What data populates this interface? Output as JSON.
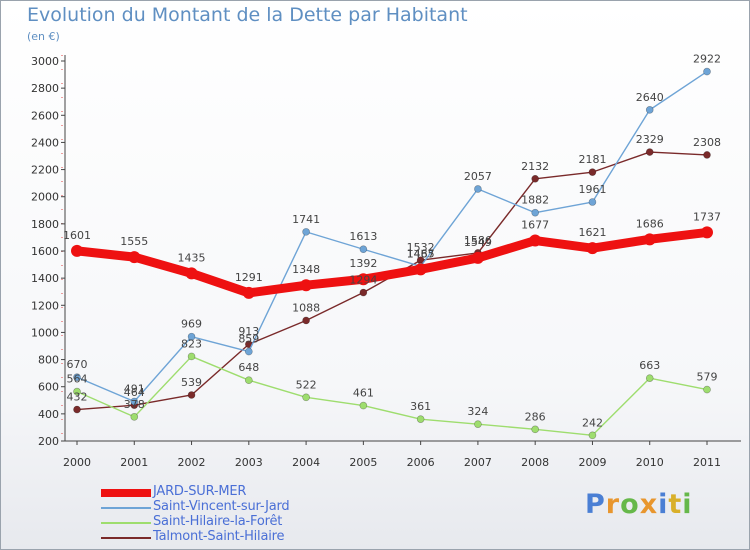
{
  "title": "Evolution du Montant de la Dette par Habitant",
  "subtitle": "(en €)",
  "logo": {
    "letters": [
      {
        "ch": "P",
        "color": "#4a7fd4"
      },
      {
        "ch": "r",
        "color": "#e8962e"
      },
      {
        "ch": "o",
        "color": "#66b84a"
      },
      {
        "ch": "x",
        "color": "#e8962e"
      },
      {
        "ch": "i",
        "color": "#4a7fd4"
      },
      {
        "ch": "t",
        "color": "#d9b02a"
      },
      {
        "ch": "i",
        "color": "#66b84a"
      }
    ]
  },
  "chart_data": {
    "type": "line",
    "title": "Evolution du Montant de la Dette par Habitant",
    "subtitle": "(en €)",
    "xlabel": "",
    "ylabel": "",
    "ylim": [
      200,
      3000
    ],
    "y_ticks": [
      200,
      400,
      600,
      800,
      1000,
      1200,
      1400,
      1600,
      1800,
      2000,
      2200,
      2400,
      2600,
      2800,
      3000
    ],
    "grid": false,
    "legend_position": "bottom-left",
    "x": [
      "2000",
      "2001",
      "2002",
      "2003",
      "2004",
      "2005",
      "2006",
      "2007",
      "2008",
      "2009",
      "2010",
      "2011"
    ],
    "series": [
      {
        "name": "JARD-SUR-MER",
        "color": "#ee1111",
        "values": [
          1601,
          1555,
          1435,
          1291,
          1348,
          1392,
          1465,
          1549,
          1677,
          1621,
          1686,
          1737
        ]
      },
      {
        "name": "Saint-Vincent-sur-Jard",
        "color": "#6ea4d6",
        "values": [
          670,
          491,
          969,
          859,
          1741,
          1613,
          1487,
          2057,
          1882,
          1961,
          2640,
          2922
        ]
      },
      {
        "name": "Saint-Hilaire-la-Forêt",
        "color": "#9edd6e",
        "values": [
          564,
          378,
          823,
          648,
          522,
          461,
          361,
          324,
          286,
          242,
          663,
          579
        ]
      },
      {
        "name": "Talmont-Saint-Hilaire",
        "color": "#7a2a2a",
        "values": [
          432,
          464,
          539,
          913,
          1088,
          1294,
          1532,
          1586,
          2132,
          2181,
          2329,
          2308
        ]
      }
    ]
  }
}
